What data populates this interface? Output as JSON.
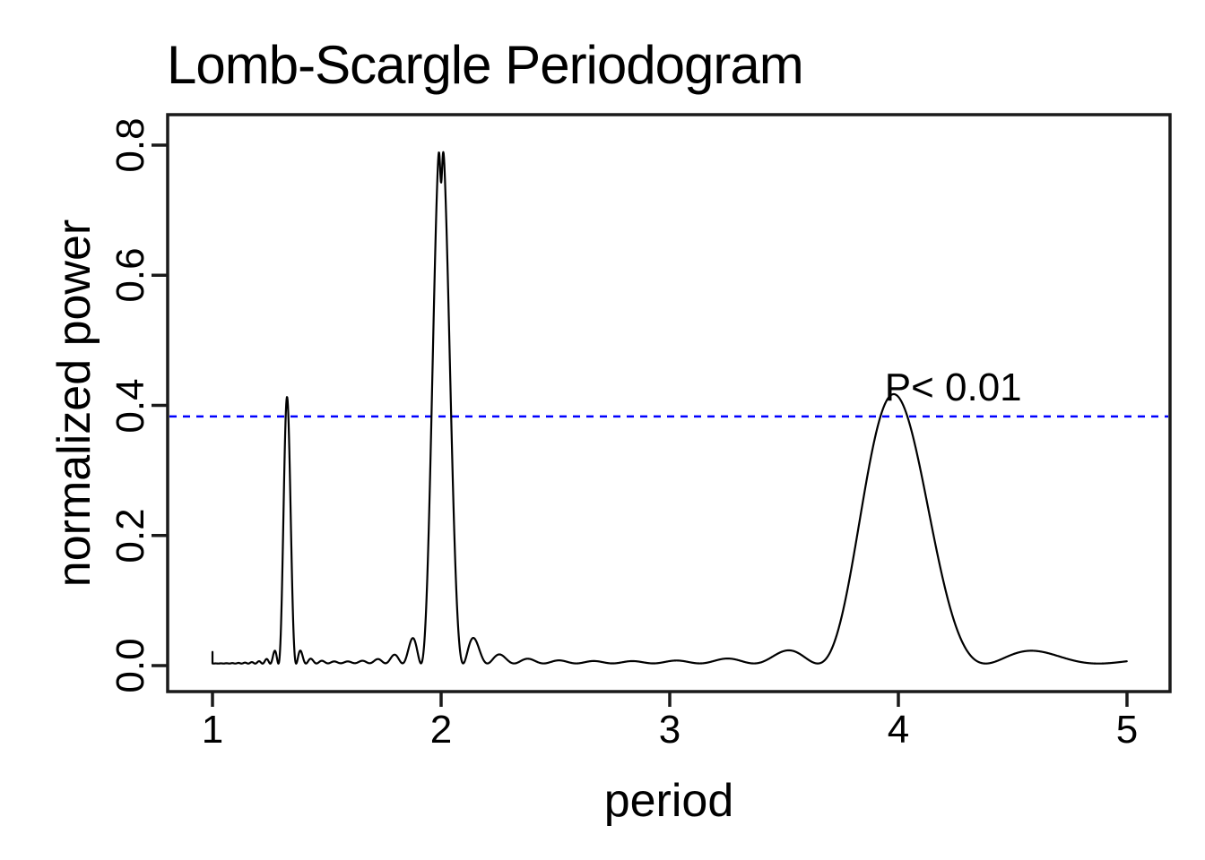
{
  "page": {
    "background": "#FFFFFF"
  },
  "chart_data": {
    "type": "line",
    "title": "Lomb-Scargle Periodogram",
    "xlabel": "period",
    "ylabel": "normalized power",
    "xlim": [
      1,
      5
    ],
    "ylim": [
      0,
      0.84
    ],
    "x_ticks": [
      1,
      2,
      3,
      4,
      5
    ],
    "x_tick_labels": [
      "1",
      "2",
      "3",
      "4",
      "5"
    ],
    "y_ticks": [
      0.0,
      0.2,
      0.4,
      0.6,
      0.8
    ],
    "y_tick_labels": [
      "0.0",
      "0.2",
      "0.4",
      "0.6",
      "0.8"
    ],
    "grid": false,
    "legend": "none",
    "line_color": "#000000",
    "axis_color": "#1A1A1A",
    "significance_line": {
      "value": 0.383,
      "label": "P< 0.01",
      "label_x": 4.24,
      "label_y": 0.427,
      "color": "#0000FF",
      "style": "dashed"
    },
    "peaks": [
      {
        "period": 1.33,
        "power": 0.41,
        "shape": "narrow spike with small side lobes"
      },
      {
        "period": 2.0,
        "power": 0.81,
        "shape": "tall narrow peak with split double-horn top dipping to 0.74"
      },
      {
        "period": 3.98,
        "power": 0.41,
        "shape": "broad peak, side bumps near 3.52 and 4.61"
      }
    ],
    "curve_model": {
      "note": "Lomb-Scargle periodogram: sum of sinc^2 spectral lobes in frequency space, f = 1/period",
      "baseline": 0.003,
      "sample_step": 0.0015,
      "start_spike": {
        "x": 1.0,
        "height": 0.021
      },
      "components": [
        {
          "frequency": 0.7541,
          "height": 0.41,
          "lobe_width": 0.022
        },
        {
          "frequency": 0.5,
          "height": 0.83,
          "lobe_width": 0.023,
          "notch_depth": 0.11,
          "notch_width": 0.0018
        },
        {
          "frequency": 0.25126,
          "height": 0.414,
          "lobe_width": 0.023
        }
      ]
    }
  }
}
